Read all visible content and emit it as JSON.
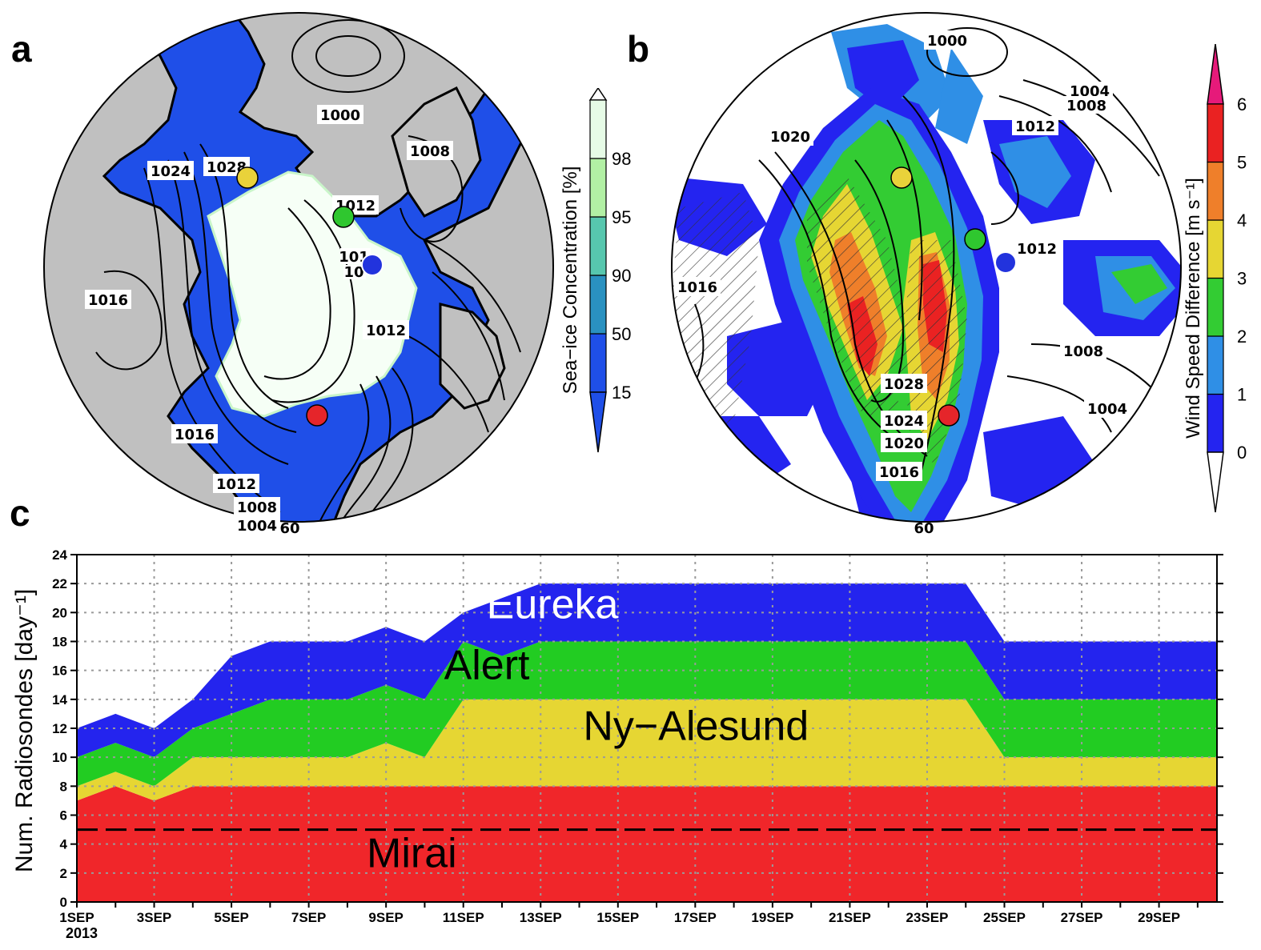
{
  "panels": {
    "a": {
      "letter": "a",
      "colorbar_label": "Sea−ice Concentration [%]",
      "colorbar_ticks": [
        "15",
        "50",
        "90",
        "95",
        "98"
      ],
      "colorbar_colors": [
        "#1f4fe8",
        "#2a91c0",
        "#57c7ae",
        "#b2f0a4",
        "#e6fbe6"
      ],
      "contour_labels": [
        "1000",
        "1008",
        "1024",
        "1028",
        "1012",
        "101",
        "10",
        "1016",
        "1012",
        "1016",
        "1012",
        "1008",
        "1004",
        "60"
      ],
      "markers": [
        {
          "color": "#e9d23a"
        },
        {
          "color": "#2fc72f"
        },
        {
          "color": "#2233dd"
        },
        {
          "color": "#e5252a"
        }
      ]
    },
    "b": {
      "letter": "b",
      "colorbar_label": "Wind Speed Difference [m s⁻¹]",
      "colorbar_ticks": [
        "0",
        "1",
        "2",
        "3",
        "4",
        "5",
        "6"
      ],
      "colorbar_colors": [
        "#2424f0",
        "#2f8fe6",
        "#33cc33",
        "#e6d633",
        "#ef7f2a",
        "#ea2222",
        "#e61a7a"
      ],
      "contour_labels": [
        "1000",
        "1004",
        "1008",
        "1020",
        "1012",
        "1012",
        "1016",
        "1008",
        "1004",
        "1028",
        "1024",
        "1020",
        "1016",
        "60"
      ],
      "markers": [
        {
          "color": "#e9d23a"
        },
        {
          "color": "#2fc72f"
        },
        {
          "color": "#2233dd"
        },
        {
          "color": "#e5252a"
        }
      ]
    },
    "c": {
      "letter": "c"
    }
  },
  "chart_data": {
    "type": "area",
    "stacked": true,
    "ylabel": "Num. Radiosondes [day⁻¹]",
    "ylim": [
      0,
      24
    ],
    "yticks": [
      0,
      2,
      4,
      6,
      8,
      10,
      12,
      14,
      16,
      18,
      20,
      22,
      24
    ],
    "xlim": [
      1,
      30.5
    ],
    "x": [
      1,
      2,
      3,
      4,
      5,
      6,
      7,
      8,
      9,
      10,
      11,
      12,
      13,
      14,
      15,
      16,
      17,
      18,
      19,
      20,
      21,
      22,
      23,
      24,
      25,
      26,
      27,
      28,
      29,
      30,
      30.5
    ],
    "xticks": [
      {
        "x": 1,
        "label": "1SEP"
      },
      {
        "x": 3,
        "label": "3SEP"
      },
      {
        "x": 5,
        "label": "5SEP"
      },
      {
        "x": 7,
        "label": "7SEP"
      },
      {
        "x": 9,
        "label": "9SEP"
      },
      {
        "x": 11,
        "label": "11SEP"
      },
      {
        "x": 13,
        "label": "13SEP"
      },
      {
        "x": 15,
        "label": "15SEP"
      },
      {
        "x": 17,
        "label": "17SEP"
      },
      {
        "x": 19,
        "label": "19SEP"
      },
      {
        "x": 21,
        "label": "21SEP"
      },
      {
        "x": 23,
        "label": "23SEP"
      },
      {
        "x": 25,
        "label": "25SEP"
      },
      {
        "x": 27,
        "label": "27SEP"
      },
      {
        "x": 29,
        "label": "29SEP"
      }
    ],
    "year_label": "2013",
    "grid": true,
    "reference_line": {
      "y": 5,
      "style": "dashed"
    },
    "series": [
      {
        "name": "Mirai",
        "color": "#f0262a",
        "label_x": 8.5,
        "label_y": 2.4,
        "label_color": "#000000",
        "values": [
          7,
          8,
          7,
          8,
          8,
          8,
          8,
          8,
          8,
          8,
          8,
          8,
          8,
          8,
          8,
          8,
          8,
          8,
          8,
          8,
          8,
          8,
          8,
          8,
          8,
          8,
          8,
          8,
          8,
          8,
          8
        ]
      },
      {
        "name": "Ny−Alesund",
        "color": "#e6d633",
        "label_x": 14.1,
        "label_y": 11.2,
        "label_color": "#000000",
        "values": [
          1,
          1,
          1,
          2,
          2,
          2,
          2,
          2,
          3,
          2,
          6,
          6,
          6,
          6,
          6,
          6,
          6,
          6,
          6,
          6,
          6,
          6,
          6,
          6,
          2,
          2,
          2,
          2,
          2,
          2,
          2
        ]
      },
      {
        "name": "Alert",
        "color": "#22cc22",
        "label_x": 10.5,
        "label_y": 15.4,
        "label_color": "#000000",
        "values": [
          2,
          2,
          2,
          2,
          3,
          4,
          4,
          4,
          4,
          4,
          4,
          3,
          4,
          4,
          4,
          4,
          4,
          4,
          4,
          4,
          4,
          4,
          4,
          4,
          4,
          4,
          4,
          4,
          4,
          4,
          4
        ]
      },
      {
        "name": "Eureka",
        "color": "#2424ee",
        "label_x": 11.6,
        "label_y": 19.6,
        "label_color": "#ffffff",
        "values": [
          2,
          2,
          2,
          2,
          4,
          4,
          4,
          4,
          4,
          4,
          2,
          4,
          4,
          4,
          4,
          4,
          4,
          4,
          4,
          4,
          4,
          4,
          4,
          4,
          4,
          4,
          4,
          4,
          4,
          4,
          4
        ]
      }
    ]
  }
}
